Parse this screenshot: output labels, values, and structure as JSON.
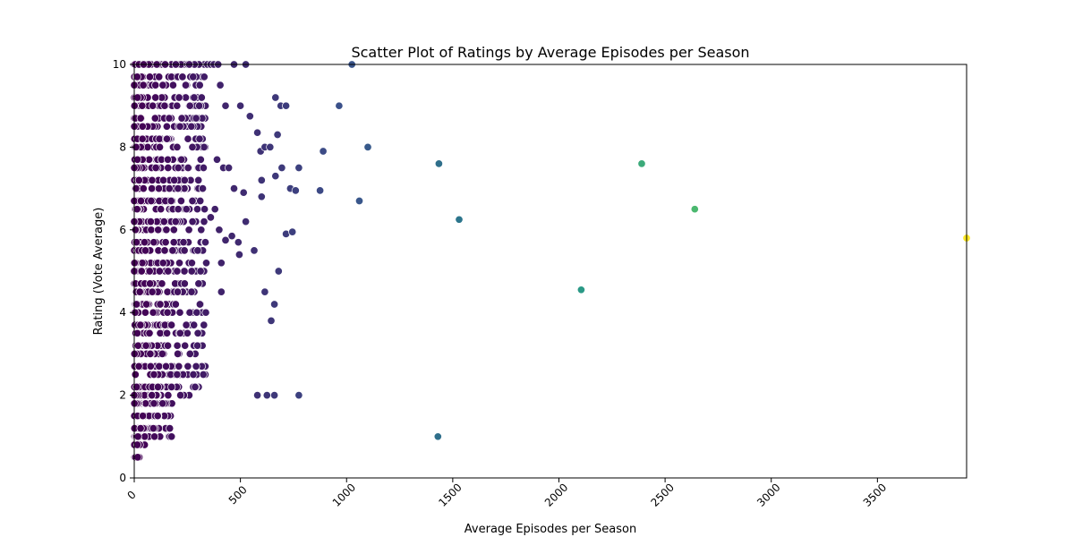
{
  "chart_data": {
    "type": "scatter",
    "title": "Scatter Plot of Ratings by Average Episodes per Season",
    "xlabel": "Average Episodes per Season",
    "ylabel": "Rating (Vote Average)",
    "xlim": [
      0,
      3920
    ],
    "ylim": [
      0,
      10
    ],
    "xticks": [
      0,
      500,
      1000,
      1500,
      2000,
      2500,
      3000,
      3500
    ],
    "yticks": [
      0,
      2,
      4,
      6,
      8,
      10
    ],
    "grid": false,
    "legend": "none",
    "colormap": "viridis",
    "colors": {
      "low": "#440154",
      "mid1": "#3b528b",
      "mid2": "#21918c",
      "mid3": "#35b779",
      "high": "#fde725"
    },
    "points": [
      [
        10,
        10
      ],
      [
        30,
        10
      ],
      [
        55,
        10
      ],
      [
        80,
        10
      ],
      [
        110,
        10
      ],
      [
        140,
        10
      ],
      [
        175,
        10
      ],
      [
        210,
        10
      ],
      [
        240,
        10
      ],
      [
        265,
        10
      ],
      [
        330,
        10
      ],
      [
        345,
        10
      ],
      [
        360,
        10
      ],
      [
        375,
        10
      ],
      [
        395,
        10
      ],
      [
        470,
        10
      ],
      [
        525,
        10
      ],
      [
        1025,
        10
      ],
      [
        405,
        9.5
      ],
      [
        430,
        9
      ],
      [
        500,
        9
      ],
      [
        665,
        9.2
      ],
      [
        690,
        9
      ],
      [
        715,
        9
      ],
      [
        965,
        9
      ],
      [
        545,
        8.75
      ],
      [
        580,
        8.35
      ],
      [
        595,
        7.9
      ],
      [
        615,
        8
      ],
      [
        640,
        8
      ],
      [
        675,
        8.3
      ],
      [
        890,
        7.9
      ],
      [
        1100,
        8
      ],
      [
        390,
        7.7
      ],
      [
        420,
        7.5
      ],
      [
        445,
        7.5
      ],
      [
        470,
        7
      ],
      [
        515,
        6.9
      ],
      [
        600,
        7.2
      ],
      [
        600,
        6.8
      ],
      [
        665,
        7.3
      ],
      [
        695,
        7.5
      ],
      [
        735,
        7
      ],
      [
        760,
        6.95
      ],
      [
        775,
        7.5
      ],
      [
        875,
        6.95
      ],
      [
        1060,
        6.7
      ],
      [
        360,
        6.3
      ],
      [
        380,
        6.5
      ],
      [
        400,
        6
      ],
      [
        430,
        5.75
      ],
      [
        460,
        5.85
      ],
      [
        490,
        5.7
      ],
      [
        495,
        5.4
      ],
      [
        525,
        6.2
      ],
      [
        565,
        5.5
      ],
      [
        410,
        5.2
      ],
      [
        410,
        4.5
      ],
      [
        615,
        4.5
      ],
      [
        660,
        4.2
      ],
      [
        645,
        3.8
      ],
      [
        680,
        5
      ],
      [
        715,
        5.9
      ],
      [
        745,
        5.95
      ],
      [
        580,
        2
      ],
      [
        625,
        2
      ],
      [
        660,
        2
      ],
      [
        775,
        2
      ],
      [
        1435,
        7.6
      ],
      [
        1530,
        6.25
      ],
      [
        1430,
        1
      ],
      [
        2105,
        4.55
      ],
      [
        2390,
        7.6
      ],
      [
        2640,
        6.5
      ],
      [
        3920,
        5.8
      ]
    ],
    "dense_cluster": {
      "x_range": [
        0,
        340
      ],
      "y_levels": [
        0.5,
        0.8,
        1,
        1.2,
        1.5,
        1.8,
        2,
        2.2,
        2.5,
        2.7,
        3,
        3.2,
        3.5,
        3.7,
        4,
        4.2,
        4.5,
        4.7,
        5,
        5.2,
        5.5,
        5.7,
        6,
        6.2,
        6.5,
        6.7,
        7,
        7.2,
        7.5,
        7.7,
        8,
        8.2,
        8.5,
        8.7,
        9,
        9.2,
        9.5,
        9.7,
        10
      ]
    }
  }
}
